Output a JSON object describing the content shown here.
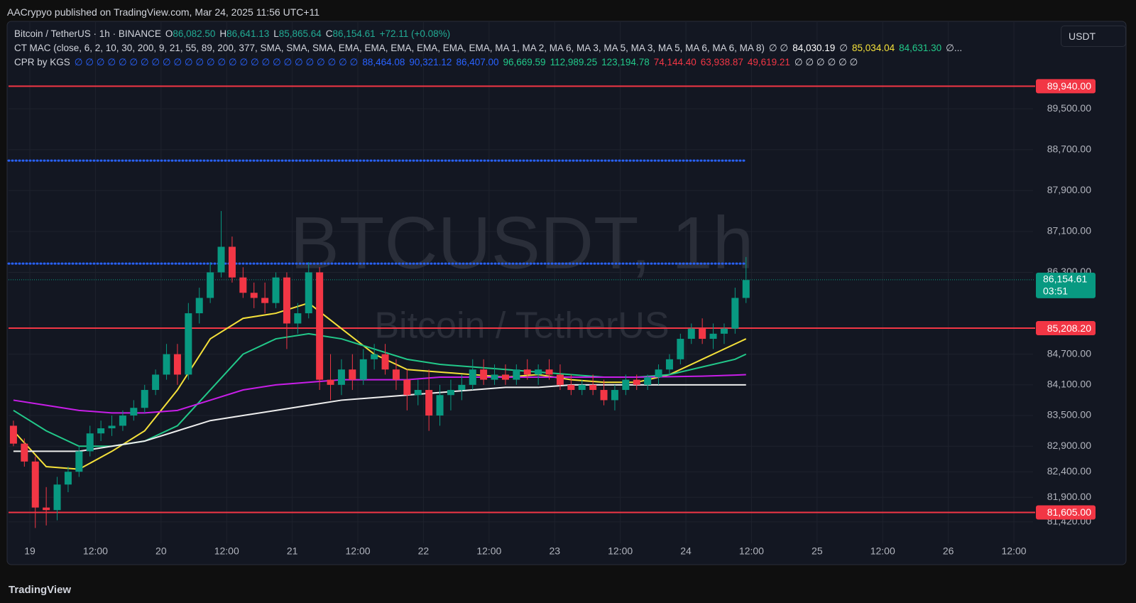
{
  "header": {
    "publisher": "AACrypyo published on TradingView.com, Mar 24, 2025 11:56 UTC+11",
    "currency": "USDT",
    "footer": "TradingView"
  },
  "symbol_row": {
    "symbol": "Bitcoin / TetherUS · 1h · BINANCE",
    "ohlc": [
      {
        "key": "O",
        "value": "86,082.50"
      },
      {
        "key": "H",
        "value": "86,641.13"
      },
      {
        "key": "L",
        "value": "85,865.64"
      },
      {
        "key": "C",
        "value": "86,154.61"
      }
    ],
    "change": "+72.11 (+0.08%)"
  },
  "mac_row": {
    "label": "CT MAC (close, 6, 2, 10, 30, 200, 9, 21, 55, 89, 200, 377, SMA, SMA, SMA, EMA, EMA, EMA, EMA, EMA, EMA, MA 1, MA 2, MA 6, MA 3, MA 5, MA 3, MA 5, MA 6, MA 6, MA 8)",
    "values": [
      {
        "text": "∅ ∅",
        "color": "#d1d4dc"
      },
      {
        "text": "84,030.19",
        "color": "#ffffff"
      },
      {
        "text": "∅",
        "color": "#d1d4dc"
      },
      {
        "text": "85,034.04",
        "color": "#f5e13a"
      },
      {
        "text": "84,631.30",
        "color": "#22c98a"
      },
      {
        "text": "∅...",
        "color": "#d1d4dc"
      }
    ]
  },
  "cpr_row": {
    "label": "CPR by KGS",
    "values": [
      {
        "text": "∅ ∅ ∅ ∅ ∅ ∅ ∅ ∅ ∅ ∅ ∅ ∅ ∅ ∅ ∅ ∅ ∅ ∅ ∅ ∅ ∅ ∅ ∅ ∅ ∅ ∅",
        "color": "#2962ff"
      },
      {
        "text": "88,464.08",
        "color": "#2962ff"
      },
      {
        "text": "90,321.12",
        "color": "#2962ff"
      },
      {
        "text": "86,407.00",
        "color": "#2962ff"
      },
      {
        "text": "96,669.59",
        "color": "#22c98a"
      },
      {
        "text": "112,989.25",
        "color": "#22c98a"
      },
      {
        "text": "123,194.78",
        "color": "#22c98a"
      },
      {
        "text": "74,144.40",
        "color": "#f23645"
      },
      {
        "text": "63,938.87",
        "color": "#f23645"
      },
      {
        "text": "49,619.21",
        "color": "#f23645"
      },
      {
        "text": "∅ ∅ ∅ ∅ ∅ ∅",
        "color": "#d1d4dc"
      }
    ]
  },
  "chart_data": {
    "type": "candlestick",
    "watermark": "BTCUSDT, 1h",
    "watermark_sub": "Bitcoin / TetherUS",
    "up_color": "#089981",
    "down_color": "#f23645",
    "x": [
      -3,
      -1,
      1,
      3,
      5,
      7,
      9,
      11,
      13,
      15,
      17,
      19,
      21,
      23,
      25,
      27,
      29,
      31,
      33,
      35,
      37,
      39,
      41,
      43,
      45,
      47,
      49,
      51,
      53,
      55,
      57,
      59,
      61,
      63,
      65,
      67,
      69,
      71,
      73,
      75,
      77,
      79,
      81,
      83,
      85,
      87,
      89,
      91,
      93,
      95,
      97,
      99,
      101,
      103,
      105,
      107,
      109,
      111,
      113,
      115,
      117,
      119,
      121,
      123,
      125,
      127,
      129,
      131
    ],
    "open": [
      83300,
      82950,
      82600,
      81700,
      81650,
      82150,
      82400,
      82800,
      83150,
      83250,
      83300,
      83500,
      83650,
      84000,
      84300,
      84700,
      84300,
      85500,
      85800,
      86300,
      86800,
      86200,
      85900,
      85800,
      85700,
      86200,
      85300,
      85500,
      86300,
      84200,
      84100,
      84400,
      84200,
      84600,
      84700,
      84400,
      84200,
      83900,
      84000,
      83500,
      83900,
      84000,
      84100,
      84400,
      84200,
      84300,
      84200,
      84400,
      84300,
      84400,
      84300,
      84100,
      84000,
      84100,
      84000,
      83800,
      84000,
      84200,
      84100,
      84250,
      84400,
      84600,
      85000,
      85200,
      85000,
      85100,
      85200,
      85800
    ],
    "high": [
      83400,
      83050,
      82700,
      82100,
      82300,
      82500,
      82900,
      83300,
      83400,
      83500,
      83600,
      83800,
      84100,
      84400,
      84900,
      84900,
      85700,
      86000,
      86500,
      87500,
      87000,
      86400,
      86100,
      86100,
      86300,
      86300,
      85700,
      86500,
      86400,
      84700,
      84600,
      84700,
      84800,
      84900,
      84900,
      84600,
      84400,
      84200,
      84400,
      84100,
      84200,
      84300,
      84600,
      84600,
      84500,
      84500,
      84500,
      84600,
      84500,
      84600,
      84500,
      84300,
      84200,
      84300,
      84200,
      84100,
      84300,
      84300,
      84300,
      84500,
      84700,
      85100,
      85300,
      85400,
      85300,
      85300,
      86000,
      86600
    ],
    "low": [
      82900,
      82500,
      81300,
      81350,
      81450,
      82000,
      82300,
      82700,
      83000,
      83100,
      83200,
      83400,
      83550,
      83900,
      84200,
      84100,
      84200,
      85300,
      85700,
      86200,
      86100,
      85800,
      85600,
      85500,
      85600,
      84800,
      85100,
      85400,
      84000,
      83800,
      83900,
      84000,
      84100,
      84400,
      84300,
      84000,
      83600,
      83700,
      83200,
      83300,
      83600,
      83800,
      84000,
      84100,
      84100,
      84100,
      84100,
      84200,
      84100,
      84200,
      84000,
      83900,
      83900,
      83900,
      83700,
      83600,
      83900,
      84000,
      84000,
      84100,
      84300,
      84500,
      84900,
      84900,
      84800,
      84900,
      85100,
      85700
    ],
    "close": [
      82950,
      82600,
      81700,
      81650,
      82150,
      82400,
      82800,
      83150,
      83250,
      83300,
      83500,
      83650,
      84000,
      84300,
      84700,
      84300,
      85500,
      85800,
      86300,
      86800,
      86200,
      85900,
      85800,
      85700,
      86200,
      85300,
      85500,
      86300,
      84200,
      84100,
      84400,
      84200,
      84600,
      84700,
      84400,
      84200,
      83900,
      84000,
      83500,
      83900,
      84000,
      84100,
      84400,
      84200,
      84300,
      84200,
      84400,
      84300,
      84400,
      84300,
      84100,
      84000,
      84100,
      84000,
      83800,
      84000,
      84200,
      84100,
      84250,
      84400,
      84600,
      85000,
      85200,
      85000,
      85100,
      85200,
      85800,
      86150
    ],
    "series": [
      {
        "color": "#f5e13a",
        "x": [
          -3,
          3,
          9,
          15,
          21,
          27,
          33,
          39,
          45,
          51,
          57,
          63,
          69,
          75,
          81,
          87,
          93,
          99,
          105,
          111,
          117,
          123,
          129,
          131
        ],
        "values": [
          83200,
          82500,
          82450,
          82800,
          83200,
          84000,
          85000,
          85400,
          85500,
          85700,
          85200,
          84700,
          84400,
          84350,
          84300,
          84250,
          84300,
          84200,
          84150,
          84150,
          84300,
          84600,
          84900,
          85000
        ]
      },
      {
        "color": "#22c98a",
        "x": [
          -3,
          3,
          9,
          15,
          21,
          27,
          33,
          39,
          45,
          51,
          57,
          63,
          69,
          75,
          81,
          87,
          93,
          99,
          105,
          111,
          117,
          123,
          129,
          131
        ],
        "values": [
          83600,
          83200,
          82900,
          82900,
          83000,
          83300,
          84000,
          84700,
          85000,
          85100,
          85000,
          84800,
          84600,
          84500,
          84450,
          84400,
          84350,
          84300,
          84250,
          84250,
          84300,
          84450,
          84600,
          84700
        ]
      },
      {
        "color": "#c81ee8",
        "x": [
          -3,
          3,
          9,
          15,
          21,
          27,
          33,
          39,
          45,
          51,
          57,
          63,
          69,
          75,
          81,
          87,
          93,
          99,
          105,
          111,
          117,
          123,
          129,
          131
        ],
        "values": [
          83800,
          83700,
          83600,
          83550,
          83550,
          83600,
          83800,
          84000,
          84100,
          84150,
          84200,
          84200,
          84200,
          84250,
          84250,
          84250,
          84250,
          84250,
          84250,
          84250,
          84260,
          84270,
          84290,
          84300
        ]
      },
      {
        "color": "#eeeeee",
        "x": [
          -3,
          3,
          9,
          15,
          21,
          27,
          33,
          39,
          45,
          51,
          57,
          63,
          69,
          75,
          81,
          87,
          93,
          99,
          105,
          111,
          117,
          123,
          129,
          131
        ],
        "values": [
          82800,
          82800,
          82800,
          82900,
          83000,
          83200,
          83400,
          83500,
          83600,
          83700,
          83800,
          83850,
          83900,
          83950,
          84000,
          84050,
          84050,
          84100,
          84100,
          84100,
          84100,
          84100,
          84100,
          84100
        ]
      }
    ],
    "levels": [
      {
        "value": 89940,
        "label": "89,940.00",
        "color": "#f23645"
      },
      {
        "value": 85208.2,
        "label": "85,208.20",
        "color": "#f23645"
      },
      {
        "value": 81605,
        "label": "81,605.00",
        "color": "#f23645"
      }
    ],
    "cpr_levels": [
      {
        "value": 88486,
        "color": "#2962ff"
      },
      {
        "value": 86472,
        "color": "#2962ff"
      }
    ],
    "last": {
      "value": 86154.61,
      "label": "86,154.61",
      "countdown": "03:51",
      "color": "#089981"
    },
    "xlim": [
      -3.9,
      183.5
    ],
    "ylim": [
      81000,
      91210
    ],
    "xticks": [
      {
        "value": 0,
        "label": "19"
      },
      {
        "value": 12,
        "label": "12:00"
      },
      {
        "value": 24,
        "label": "20"
      },
      {
        "value": 36,
        "label": "12:00"
      },
      {
        "value": 48,
        "label": "21"
      },
      {
        "value": 60,
        "label": "12:00"
      },
      {
        "value": 72,
        "label": "22"
      },
      {
        "value": 84,
        "label": "12:00"
      },
      {
        "value": 96,
        "label": "23"
      },
      {
        "value": 108,
        "label": "12:00"
      },
      {
        "value": 120,
        "label": "24"
      },
      {
        "value": 132,
        "label": "12:00"
      },
      {
        "value": 144,
        "label": "25"
      },
      {
        "value": 156,
        "label": "12:00"
      },
      {
        "value": 168,
        "label": "26"
      },
      {
        "value": 180,
        "label": "12:00"
      }
    ],
    "yticks": [
      {
        "value": 89500,
        "label": "89,500.00"
      },
      {
        "value": 88700,
        "label": "88,700.00"
      },
      {
        "value": 87900,
        "label": "87,900.00"
      },
      {
        "value": 87100,
        "label": "87,100.00"
      },
      {
        "value": 86300,
        "label": "86,300.00"
      },
      {
        "value": 84700,
        "label": "84,700.00"
      },
      {
        "value": 84100,
        "label": "84,100.00"
      },
      {
        "value": 83500,
        "label": "83,500.00"
      },
      {
        "value": 82900,
        "label": "82,900.00"
      },
      {
        "value": 82400,
        "label": "82,400.00"
      },
      {
        "value": 81900,
        "label": "81,900.00"
      },
      {
        "value": 81420,
        "label": "81,420.00"
      }
    ],
    "grid": true
  }
}
